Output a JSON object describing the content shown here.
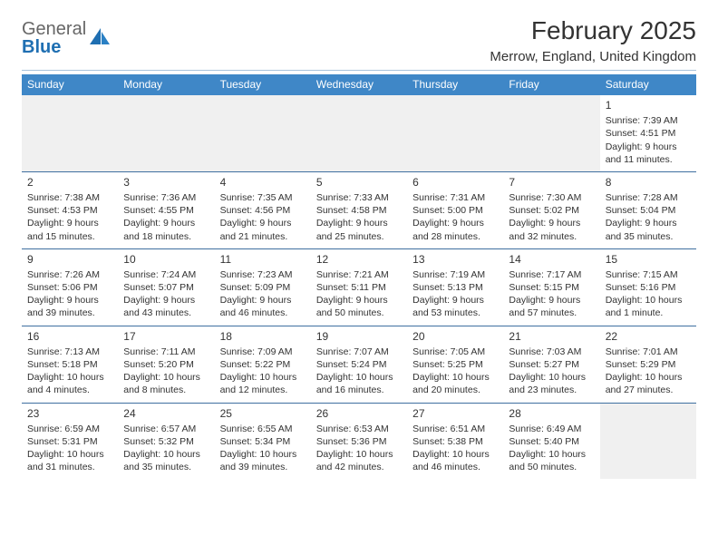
{
  "logo": {
    "label1": "General",
    "label2": "Blue"
  },
  "title": "February 2025",
  "location": "Merrow, England, United Kingdom",
  "colors": {
    "header_bg": "#3f87c7",
    "header_text": "#ffffff",
    "divider": "#3f6fa0",
    "empty_bg": "#f0f0f0",
    "text": "#333333",
    "logo_blue": "#1f6fb2"
  },
  "day_headers": [
    "Sunday",
    "Monday",
    "Tuesday",
    "Wednesday",
    "Thursday",
    "Friday",
    "Saturday"
  ],
  "weeks": [
    [
      null,
      null,
      null,
      null,
      null,
      null,
      {
        "n": "1",
        "sr": "7:39 AM",
        "ss": "4:51 PM",
        "dl": "9 hours and 11 minutes."
      }
    ],
    [
      {
        "n": "2",
        "sr": "7:38 AM",
        "ss": "4:53 PM",
        "dl": "9 hours and 15 minutes."
      },
      {
        "n": "3",
        "sr": "7:36 AM",
        "ss": "4:55 PM",
        "dl": "9 hours and 18 minutes."
      },
      {
        "n": "4",
        "sr": "7:35 AM",
        "ss": "4:56 PM",
        "dl": "9 hours and 21 minutes."
      },
      {
        "n": "5",
        "sr": "7:33 AM",
        "ss": "4:58 PM",
        "dl": "9 hours and 25 minutes."
      },
      {
        "n": "6",
        "sr": "7:31 AM",
        "ss": "5:00 PM",
        "dl": "9 hours and 28 minutes."
      },
      {
        "n": "7",
        "sr": "7:30 AM",
        "ss": "5:02 PM",
        "dl": "9 hours and 32 minutes."
      },
      {
        "n": "8",
        "sr": "7:28 AM",
        "ss": "5:04 PM",
        "dl": "9 hours and 35 minutes."
      }
    ],
    [
      {
        "n": "9",
        "sr": "7:26 AM",
        "ss": "5:06 PM",
        "dl": "9 hours and 39 minutes."
      },
      {
        "n": "10",
        "sr": "7:24 AM",
        "ss": "5:07 PM",
        "dl": "9 hours and 43 minutes."
      },
      {
        "n": "11",
        "sr": "7:23 AM",
        "ss": "5:09 PM",
        "dl": "9 hours and 46 minutes."
      },
      {
        "n": "12",
        "sr": "7:21 AM",
        "ss": "5:11 PM",
        "dl": "9 hours and 50 minutes."
      },
      {
        "n": "13",
        "sr": "7:19 AM",
        "ss": "5:13 PM",
        "dl": "9 hours and 53 minutes."
      },
      {
        "n": "14",
        "sr": "7:17 AM",
        "ss": "5:15 PM",
        "dl": "9 hours and 57 minutes."
      },
      {
        "n": "15",
        "sr": "7:15 AM",
        "ss": "5:16 PM",
        "dl": "10 hours and 1 minute."
      }
    ],
    [
      {
        "n": "16",
        "sr": "7:13 AM",
        "ss": "5:18 PM",
        "dl": "10 hours and 4 minutes."
      },
      {
        "n": "17",
        "sr": "7:11 AM",
        "ss": "5:20 PM",
        "dl": "10 hours and 8 minutes."
      },
      {
        "n": "18",
        "sr": "7:09 AM",
        "ss": "5:22 PM",
        "dl": "10 hours and 12 minutes."
      },
      {
        "n": "19",
        "sr": "7:07 AM",
        "ss": "5:24 PM",
        "dl": "10 hours and 16 minutes."
      },
      {
        "n": "20",
        "sr": "7:05 AM",
        "ss": "5:25 PM",
        "dl": "10 hours and 20 minutes."
      },
      {
        "n": "21",
        "sr": "7:03 AM",
        "ss": "5:27 PM",
        "dl": "10 hours and 23 minutes."
      },
      {
        "n": "22",
        "sr": "7:01 AM",
        "ss": "5:29 PM",
        "dl": "10 hours and 27 minutes."
      }
    ],
    [
      {
        "n": "23",
        "sr": "6:59 AM",
        "ss": "5:31 PM",
        "dl": "10 hours and 31 minutes."
      },
      {
        "n": "24",
        "sr": "6:57 AM",
        "ss": "5:32 PM",
        "dl": "10 hours and 35 minutes."
      },
      {
        "n": "25",
        "sr": "6:55 AM",
        "ss": "5:34 PM",
        "dl": "10 hours and 39 minutes."
      },
      {
        "n": "26",
        "sr": "6:53 AM",
        "ss": "5:36 PM",
        "dl": "10 hours and 42 minutes."
      },
      {
        "n": "27",
        "sr": "6:51 AM",
        "ss": "5:38 PM",
        "dl": "10 hours and 46 minutes."
      },
      {
        "n": "28",
        "sr": "6:49 AM",
        "ss": "5:40 PM",
        "dl": "10 hours and 50 minutes."
      },
      null
    ]
  ],
  "labels": {
    "sunrise": "Sunrise:",
    "sunset": "Sunset:",
    "daylight": "Daylight:"
  }
}
